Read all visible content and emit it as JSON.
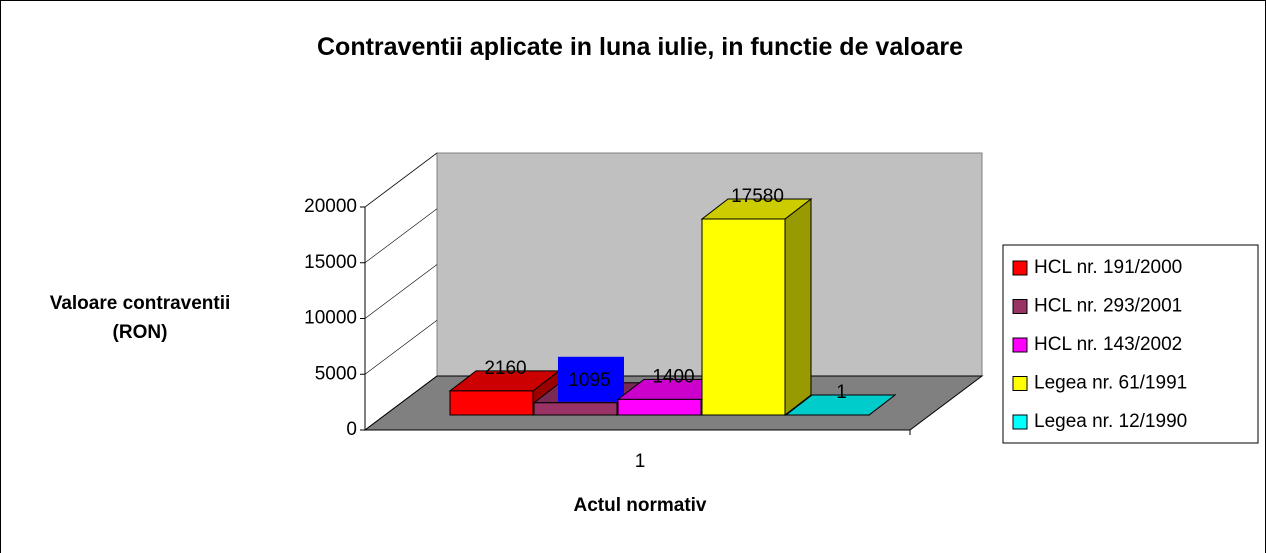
{
  "chart_data": {
    "type": "bar3d",
    "title": "Contraventii aplicate in luna iulie, in functie de valoare",
    "x_label": "Actul normativ",
    "y_label": "Valoare contraventii (RON)",
    "categories": [
      "1"
    ],
    "series": [
      {
        "name": "HCL nr. 191/2000",
        "color": "#ff0000",
        "values": [
          2160
        ]
      },
      {
        "name": "HCL nr. 293/2001",
        "color": "#993366",
        "values": [
          1095
        ]
      },
      {
        "name": "HCL nr. 143/2002",
        "color": "#ff00ff",
        "values": [
          1400
        ]
      },
      {
        "name": "Legea nr. 61/1991",
        "color": "#ffff00",
        "values": [
          17580
        ]
      },
      {
        "name": "Legea nr. 12/1990",
        "color": "#00ffff",
        "values": [
          1
        ]
      }
    ],
    "ylim": [
      0,
      20000
    ],
    "yticks": [
      0,
      5000,
      10000,
      15000,
      20000
    ],
    "legend": "right"
  }
}
